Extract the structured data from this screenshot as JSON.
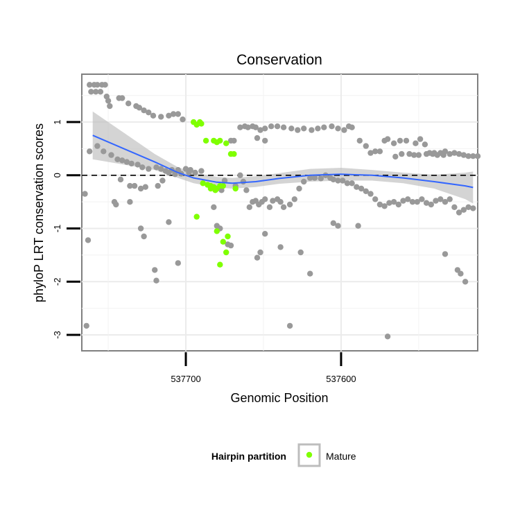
{
  "chart_data": {
    "type": "scatter",
    "title": "Conservation",
    "xlabel": "Genomic Position",
    "ylabel": "phyloP LRT conservation scores",
    "xlim": [
      537767,
      537512
    ],
    "ylim": [
      -3.3,
      1.9
    ],
    "x_reversed": true,
    "x_ticks": [
      537700,
      537600
    ],
    "x_tick_labels": [
      "537700",
      "537600"
    ],
    "y_ticks": [
      -3,
      -2,
      -1,
      0,
      1
    ],
    "y_tick_labels": [
      "-3",
      "-2",
      "-1",
      "0",
      "1"
    ],
    "reference_line": {
      "y": 0,
      "style": "dashed"
    },
    "legend": {
      "title": "Hairpin partition",
      "position": "bottom",
      "entries": [
        {
          "label": "Mature",
          "color": "#7fff00"
        }
      ]
    },
    "colors": {
      "other": "#999999",
      "mature": "#7fff00",
      "smooth": "#3366ff",
      "band": "#bdbdbd"
    },
    "series": [
      {
        "name": "Other",
        "color": "#999999",
        "points": [
          [
            537762,
            1.7
          ],
          [
            537759,
            1.7
          ],
          [
            537757,
            1.7
          ],
          [
            537754,
            1.7
          ],
          [
            537752,
            1.7
          ],
          [
            537761,
            1.57
          ],
          [
            537758,
            1.57
          ],
          [
            537755,
            1.57
          ],
          [
            537751,
            1.48
          ],
          [
            537750,
            1.4
          ],
          [
            537749,
            1.3
          ],
          [
            537743,
            1.45
          ],
          [
            537741,
            1.45
          ],
          [
            537737,
            1.35
          ],
          [
            537732,
            1.3
          ],
          [
            537730,
            1.27
          ],
          [
            537727,
            1.22
          ],
          [
            537724,
            1.18
          ],
          [
            537721,
            1.12
          ],
          [
            537716,
            1.1
          ],
          [
            537711,
            1.12
          ],
          [
            537708,
            1.15
          ],
          [
            537705,
            1.15
          ],
          [
            537702,
            1.05
          ],
          [
            537762,
            0.45
          ],
          [
            537757,
            0.55
          ],
          [
            537753,
            0.45
          ],
          [
            537748,
            0.38
          ],
          [
            537744,
            0.3
          ],
          [
            537741,
            0.28
          ],
          [
            537738,
            0.25
          ],
          [
            537735,
            0.22
          ],
          [
            537731,
            0.2
          ],
          [
            537728,
            0.15
          ],
          [
            537724,
            0.12
          ],
          [
            537719,
            0.15
          ],
          [
            537716,
            0.12
          ],
          [
            537713,
            0.08
          ],
          [
            537709,
            0.1
          ],
          [
            537705,
            0.1
          ],
          [
            537700,
            0.12
          ],
          [
            537697,
            0.1
          ],
          [
            537694,
            0.05
          ],
          [
            537690,
            0.08
          ],
          [
            537711,
            0.05
          ],
          [
            537707,
            0.02
          ],
          [
            537703,
            0.03
          ],
          [
            537698,
            0.05
          ],
          [
            537742,
            -0.08
          ],
          [
            537736,
            -0.2
          ],
          [
            537733,
            -0.2
          ],
          [
            537729,
            -0.25
          ],
          [
            537726,
            -0.22
          ],
          [
            537718,
            -0.2
          ],
          [
            537715,
            -0.1
          ],
          [
            537765,
            -0.35
          ],
          [
            537763,
            -1.22
          ],
          [
            537764,
            -2.83
          ],
          [
            537746,
            -0.5
          ],
          [
            537745,
            -0.55
          ],
          [
            537736,
            -0.5
          ],
          [
            537729,
            -1.0
          ],
          [
            537727,
            -1.15
          ],
          [
            537711,
            -0.88
          ],
          [
            537720,
            -1.78
          ],
          [
            537719,
            -1.98
          ],
          [
            537705,
            -1.65
          ],
          [
            537682,
            -0.6
          ],
          [
            537680,
            -0.95
          ],
          [
            537678,
            -1.0
          ],
          [
            537677,
            -0.28
          ],
          [
            537675,
            -0.1
          ],
          [
            537673,
            -1.3
          ],
          [
            537671,
            -1.32
          ],
          [
            537668,
            -0.2
          ],
          [
            537665,
            0.0
          ],
          [
            537663,
            -0.12
          ],
          [
            537661,
            -0.28
          ],
          [
            537659,
            -0.6
          ],
          [
            537657,
            -0.5
          ],
          [
            537655,
            -0.48
          ],
          [
            537653,
            -0.55
          ],
          [
            537651,
            -0.5
          ],
          [
            537649,
            -0.45
          ],
          [
            537646,
            -0.6
          ],
          [
            537644,
            -0.48
          ],
          [
            537641,
            -0.45
          ],
          [
            537639,
            -0.5
          ],
          [
            537637,
            -0.6
          ],
          [
            537654,
            -1.55
          ],
          [
            537652,
            -1.45
          ],
          [
            537649,
            -1.1
          ],
          [
            537639,
            -1.35
          ],
          [
            537633,
            -0.55
          ],
          [
            537630,
            -0.45
          ],
          [
            537627,
            -0.25
          ],
          [
            537624,
            -0.12
          ],
          [
            537620,
            -0.05
          ],
          [
            537617,
            -0.05
          ],
          [
            537613,
            -0.06
          ],
          [
            537610,
            0.0
          ],
          [
            537607,
            -0.05
          ],
          [
            537605,
            -0.08
          ],
          [
            537602,
            -0.1
          ],
          [
            537599,
            -0.1
          ],
          [
            537596,
            -0.15
          ],
          [
            537593,
            -0.15
          ],
          [
            537590,
            -0.22
          ],
          [
            537587,
            -0.25
          ],
          [
            537584,
            -0.3
          ],
          [
            537581,
            -0.35
          ],
          [
            537578,
            -0.45
          ],
          [
            537575,
            -0.55
          ],
          [
            537572,
            -0.58
          ],
          [
            537569,
            -0.52
          ],
          [
            537566,
            -0.5
          ],
          [
            537563,
            -0.55
          ],
          [
            537560,
            -0.48
          ],
          [
            537557,
            -0.45
          ],
          [
            537554,
            -0.5
          ],
          [
            537551,
            -0.5
          ],
          [
            537548,
            -0.45
          ],
          [
            537545,
            -0.52
          ],
          [
            537542,
            -0.55
          ],
          [
            537539,
            -0.48
          ],
          [
            537536,
            -0.45
          ],
          [
            537533,
            -0.5
          ],
          [
            537530,
            -0.45
          ],
          [
            537527,
            -0.6
          ],
          [
            537524,
            -0.7
          ],
          [
            537521,
            -0.65
          ],
          [
            537518,
            -0.6
          ],
          [
            537515,
            -0.62
          ],
          [
            537633,
            -2.83
          ],
          [
            537626,
            -1.45
          ],
          [
            537620,
            -1.85
          ],
          [
            537605,
            -0.9
          ],
          [
            537602,
            -0.95
          ],
          [
            537589,
            -0.95
          ],
          [
            537570,
            -3.03
          ],
          [
            537533,
            -1.48
          ],
          [
            537525,
            -1.78
          ],
          [
            537523,
            -1.85
          ],
          [
            537520,
            -2.0
          ],
          [
            537665,
            0.9
          ],
          [
            537662,
            0.92
          ],
          [
            537660,
            0.9
          ],
          [
            537657,
            0.92
          ],
          [
            537655,
            0.9
          ],
          [
            537652,
            0.85
          ],
          [
            537649,
            0.88
          ],
          [
            537645,
            0.92
          ],
          [
            537641,
            0.92
          ],
          [
            537637,
            0.9
          ],
          [
            537632,
            0.88
          ],
          [
            537628,
            0.85
          ],
          [
            537624,
            0.88
          ],
          [
            537619,
            0.85
          ],
          [
            537615,
            0.88
          ],
          [
            537611,
            0.9
          ],
          [
            537606,
            0.92
          ],
          [
            537602,
            0.88
          ],
          [
            537598,
            0.85
          ],
          [
            537595,
            0.92
          ],
          [
            537593,
            0.9
          ],
          [
            537671,
            0.65
          ],
          [
            537669,
            0.65
          ],
          [
            537654,
            0.7
          ],
          [
            537649,
            0.65
          ],
          [
            537588,
            0.65
          ],
          [
            537584,
            0.55
          ],
          [
            537581,
            0.42
          ],
          [
            537578,
            0.45
          ],
          [
            537575,
            0.45
          ],
          [
            537572,
            0.65
          ],
          [
            537570,
            0.68
          ],
          [
            537566,
            0.6
          ],
          [
            537562,
            0.65
          ],
          [
            537558,
            0.65
          ],
          [
            537552,
            0.6
          ],
          [
            537549,
            0.68
          ],
          [
            537546,
            0.58
          ],
          [
            537543,
            0.42
          ],
          [
            537541,
            0.4
          ],
          [
            537538,
            0.38
          ],
          [
            537536,
            0.42
          ],
          [
            537533,
            0.45
          ],
          [
            537530,
            0.4
          ],
          [
            537527,
            0.42
          ],
          [
            537524,
            0.4
          ],
          [
            537521,
            0.38
          ],
          [
            537518,
            0.36
          ],
          [
            537515,
            0.36
          ],
          [
            537512,
            0.36
          ],
          [
            537545,
            0.4
          ],
          [
            537540,
            0.42
          ],
          [
            537534,
            0.38
          ],
          [
            537565,
            0.35
          ],
          [
            537561,
            0.4
          ],
          [
            537556,
            0.4
          ],
          [
            537553,
            0.38
          ],
          [
            537550,
            0.38
          ]
        ]
      },
      {
        "name": "Mature",
        "color": "#7fff00",
        "points": [
          [
            537695,
            1.0
          ],
          [
            537693,
            0.95
          ],
          [
            537691,
            1.0
          ],
          [
            537690,
            0.97
          ],
          [
            537687,
            0.65
          ],
          [
            537682,
            0.65
          ],
          [
            537680,
            0.62
          ],
          [
            537678,
            0.65
          ],
          [
            537674,
            0.6
          ],
          [
            537671,
            0.4
          ],
          [
            537669,
            0.4
          ],
          [
            537689,
            -0.15
          ],
          [
            537686,
            -0.18
          ],
          [
            537684,
            -0.2
          ],
          [
            537682,
            -0.22
          ],
          [
            537680,
            -0.25
          ],
          [
            537678,
            -0.2
          ],
          [
            537676,
            -0.2
          ],
          [
            537684,
            -0.25
          ],
          [
            537681,
            -0.28
          ],
          [
            537668,
            -0.25
          ],
          [
            537693,
            -0.78
          ],
          [
            537680,
            -1.05
          ],
          [
            537676,
            -1.25
          ],
          [
            537674,
            -1.45
          ],
          [
            537678,
            -1.68
          ],
          [
            537673,
            -1.15
          ]
        ]
      }
    ],
    "smooth": {
      "method": "loess",
      "color": "#3366ff",
      "x": [
        537760,
        537740,
        537720,
        537705,
        537695,
        537680,
        537670,
        537655,
        537640,
        537620,
        537600,
        537580,
        537560,
        537540,
        537520,
        537515
      ],
      "y": [
        0.75,
        0.5,
        0.25,
        0.05,
        -0.05,
        -0.13,
        -0.15,
        -0.12,
        -0.06,
        0.0,
        0.02,
        0.0,
        -0.05,
        -0.12,
        -0.2,
        -0.23
      ],
      "band_width": [
        0.45,
        0.3,
        0.15,
        0.1,
        0.1,
        0.1,
        0.1,
        0.1,
        0.1,
        0.12,
        0.12,
        0.1,
        0.1,
        0.13,
        0.25,
        0.3
      ]
    }
  }
}
